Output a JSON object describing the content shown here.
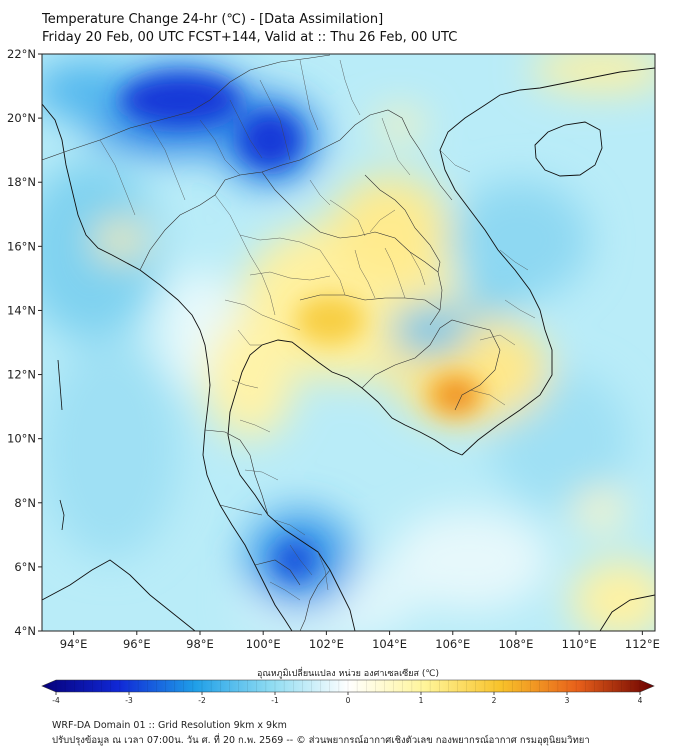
{
  "header": {
    "title_line1": "Temperature Change 24-hr (℃) - [Data Assimilation]",
    "title_line2": "Friday 20 Feb, 00 UTC FCST+144, Valid at :: Thu 26 Feb, 00 UTC"
  },
  "map_data": {
    "latitude_labels": [
      "22°N",
      "20°N",
      "18°N",
      "16°N",
      "14°N",
      "12°N",
      "10°N",
      "8°N",
      "6°N",
      "4°N"
    ],
    "longitude_labels": [
      "94°E",
      "96°E",
      "98°E",
      "100°E",
      "102°E",
      "104°E",
      "106°E",
      "108°E",
      "110°E",
      "112°E"
    ],
    "lat_range": [
      4,
      22
    ],
    "lon_range": [
      93,
      112.4
    ],
    "anomalies": [
      {
        "region": "northern-myanmar-thailand",
        "lon": 98,
        "lat": 20.3,
        "value": -3.5
      },
      {
        "region": "northern-laos",
        "lon": 101,
        "lat": 19.6,
        "value": -3.5
      },
      {
        "region": "gulf-of-thailand-south",
        "lon": 101,
        "lat": 6.0,
        "value": -3.8
      },
      {
        "region": "central-thailand",
        "lon": 101.8,
        "lat": 13.8,
        "value": 1.8
      },
      {
        "region": "cambodia",
        "lon": 106.2,
        "lat": 11.3,
        "value": 2.6
      },
      {
        "region": "northeast-thailand",
        "lon": 104,
        "lat": 16,
        "value": 1.0
      }
    ]
  },
  "colorbar": {
    "label": "อุณหภูมิเปลี่ยนแปลง หน่วย องศาเซลเซียส (℃)",
    "min": -4,
    "max": 4,
    "tick_labels": [
      "-4",
      "-3",
      "-2",
      "-1",
      "0",
      "1",
      "2",
      "3",
      "4"
    ],
    "colors": {
      "minus4": "#06007a",
      "minus3": "#1028d6",
      "minus2": "#1f9fe8",
      "minus1": "#8fdcf2",
      "zero": "#ffffff",
      "plus1": "#fff59a",
      "plus2": "#f8c22a",
      "plus3": "#e8601a",
      "plus4": "#6a0000"
    }
  },
  "footer": {
    "line1": "WRF-DA Domain 01 :: Grid Resolution 9km x 9km",
    "line2": "ปรับปรุงข้อมูล ณ เวลา 07:00น. วัน ศ. ที่ 20 ก.พ. 2569 -- © ส่วนพยากรณ์อากาศเชิงตัวเลข กองพยากรณ์อากาศ กรมอุตุนิยมวิทยา"
  }
}
